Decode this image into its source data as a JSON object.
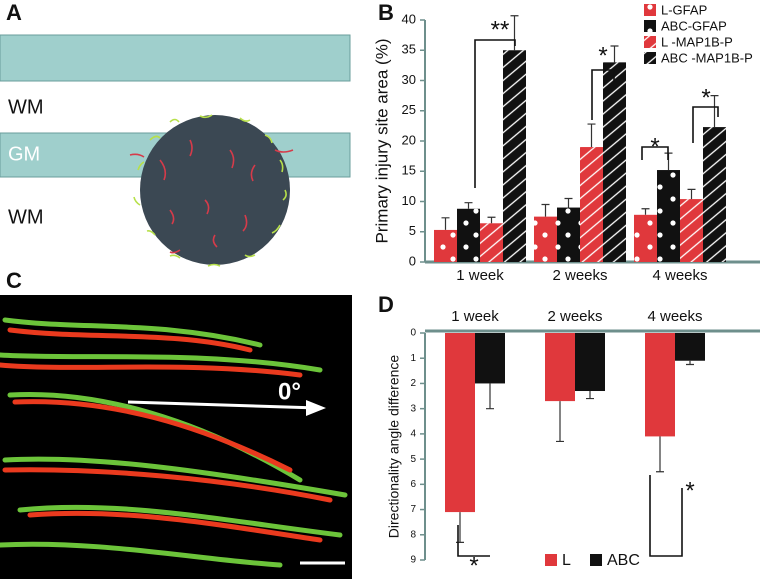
{
  "panels": {
    "labels": [
      "A",
      "B",
      "C",
      "D"
    ],
    "A": {
      "texts": [
        "WM",
        "GM",
        "WM"
      ]
    },
    "C": {
      "angle_label": "0°"
    }
  },
  "chart_data": [
    {
      "type": "bar",
      "y_label": "Primary injury site area (%)",
      "categories": [
        "1 week",
        "2 weeks",
        "4 weeks"
      ],
      "series": [
        {
          "name": "L-GFAP",
          "color": "#e0383c",
          "pattern": "dots",
          "values": [
            5.3,
            7.5,
            7.8
          ],
          "errors": [
            2.0,
            2.0,
            1.0
          ]
        },
        {
          "name": "ABC-GFAP",
          "color": "#111111",
          "pattern": "dots",
          "values": [
            8.8,
            9.0,
            15.2
          ],
          "errors": [
            1.0,
            1.5,
            2.8
          ]
        },
        {
          "name": "L -MAP1B-P",
          "color": "#e0383c",
          "pattern": "stripes",
          "values": [
            6.4,
            19.0,
            10.4
          ],
          "errors": [
            1.0,
            3.8,
            1.6
          ]
        },
        {
          "name": "ABC -MAP1B-P",
          "color": "#111111",
          "pattern": "stripes",
          "values": [
            35.0,
            33.0,
            22.3
          ],
          "errors": [
            5.7,
            2.7,
            5.2
          ]
        }
      ],
      "ylim": [
        0,
        40
      ],
      "yticks": [
        0,
        5,
        10,
        15,
        20,
        25,
        30,
        35,
        40
      ],
      "y_inverted": false,
      "legend": "top-right",
      "annotations": [
        "**",
        "*",
        "*",
        "*"
      ]
    },
    {
      "type": "bar",
      "y_label": "Directionality angle difference",
      "categories": [
        "1 week",
        "2 weeks",
        "4 weeks"
      ],
      "series": [
        {
          "name": "L",
          "color": "#e0383c",
          "values": [
            7.1,
            2.7,
            4.1
          ],
          "errors": [
            1.2,
            1.6,
            1.4
          ]
        },
        {
          "name": "ABC",
          "color": "#111111",
          "values": [
            2.0,
            2.3,
            1.1
          ],
          "errors": [
            1.0,
            0.3,
            0.15
          ]
        }
      ],
      "ylim": [
        0,
        9
      ],
      "yticks": [
        0,
        1,
        2,
        3,
        4,
        5,
        6,
        7,
        8,
        9
      ],
      "y_inverted": true,
      "legend": "bottom",
      "annotations": [
        "*",
        "*"
      ]
    }
  ]
}
